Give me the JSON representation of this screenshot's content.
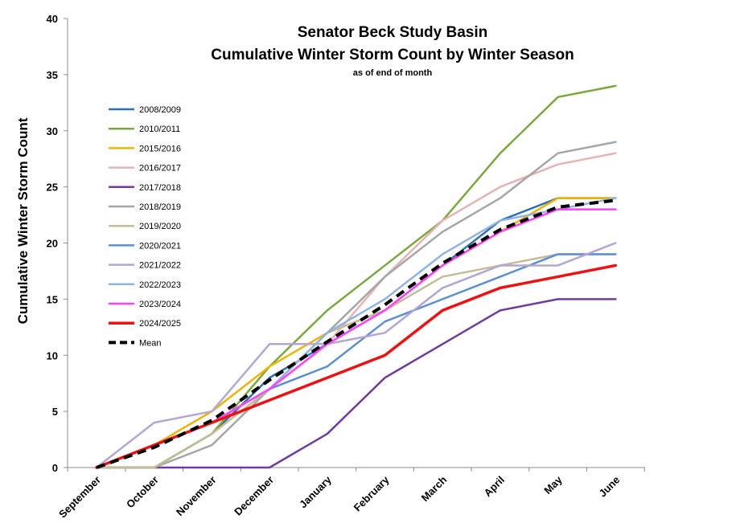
{
  "chart_data": {
    "type": "line",
    "title": "Senator Beck Study Basin",
    "subtitle": "Cumulative Winter Storm Count by Winter Season",
    "note": "as of end of month",
    "xlabel": "",
    "ylabel": "Cumulative Winter Storm Count",
    "ylim": [
      0,
      40
    ],
    "yticks": [
      0,
      5,
      10,
      15,
      20,
      25,
      30,
      35,
      40
    ],
    "grid": false,
    "legend_position": "top-left",
    "categories": [
      "September",
      "October",
      "November",
      "December",
      "January",
      "February",
      "March",
      "April",
      "May",
      "June"
    ],
    "series": [
      {
        "name": "2008/2009",
        "color": "#2e6fb0",
        "width": 2.5,
        "dash": false,
        "values": [
          0,
          0,
          3,
          8,
          11,
          14,
          18,
          22,
          24,
          24
        ]
      },
      {
        "name": "2010/2011",
        "color": "#7aa83c",
        "width": 2.5,
        "dash": false,
        "values": [
          0,
          0,
          3,
          9,
          14,
          18,
          22,
          28,
          33,
          34
        ]
      },
      {
        "name": "2015/2016",
        "color": "#f0b400",
        "width": 2.5,
        "dash": false,
        "values": [
          0,
          2,
          5,
          9,
          12,
          14,
          18,
          21,
          24,
          24
        ]
      },
      {
        "name": "2016/2017",
        "color": "#e6b3b3",
        "width": 2.5,
        "dash": false,
        "values": [
          0,
          2,
          4,
          7,
          11,
          17,
          22,
          25,
          27,
          28
        ]
      },
      {
        "name": "2017/2018",
        "color": "#6e3b9e",
        "width": 2.5,
        "dash": false,
        "values": [
          0,
          0,
          0,
          0,
          3,
          8,
          11,
          14,
          15,
          15
        ]
      },
      {
        "name": "2018/2019",
        "color": "#a6a6a6",
        "width": 2.5,
        "dash": false,
        "values": [
          0,
          0,
          2,
          7,
          12,
          17,
          21,
          24,
          28,
          29
        ]
      },
      {
        "name": "2019/2020",
        "color": "#c4bc96",
        "width": 2.5,
        "dash": false,
        "values": [
          0,
          0,
          3,
          7,
          12,
          14,
          17,
          18,
          19,
          19
        ]
      },
      {
        "name": "2020/2021",
        "color": "#5b8fd0",
        "width": 2.5,
        "dash": false,
        "values": [
          0,
          2,
          4,
          7,
          9,
          13,
          15,
          17,
          19,
          19
        ]
      },
      {
        "name": "2021/2022",
        "color": "#b4a5d2",
        "width": 2.5,
        "dash": false,
        "values": [
          0,
          4,
          5,
          11,
          11,
          12,
          16,
          18,
          18,
          20
        ]
      },
      {
        "name": "2022/2023",
        "color": "#8fb4e3",
        "width": 2.5,
        "dash": false,
        "values": [
          0,
          2,
          4,
          7,
          12,
          15,
          19,
          22,
          23,
          24
        ]
      },
      {
        "name": "2023/2024",
        "color": "#ff40ff",
        "width": 2.5,
        "dash": false,
        "values": [
          0,
          2,
          4,
          7,
          11,
          14,
          18,
          21,
          23,
          23
        ]
      },
      {
        "name": "2024/2025",
        "color": "#ee1111",
        "width": 3.5,
        "dash": false,
        "values": [
          0,
          2,
          4,
          6,
          8,
          10,
          14,
          16,
          17,
          18
        ]
      },
      {
        "name": "Mean",
        "color": "#000000",
        "width": 4,
        "dash": true,
        "values": [
          0,
          1.8,
          4.2,
          7.8,
          11.2,
          14.5,
          18.2,
          21.2,
          23.2,
          23.8
        ]
      }
    ]
  }
}
